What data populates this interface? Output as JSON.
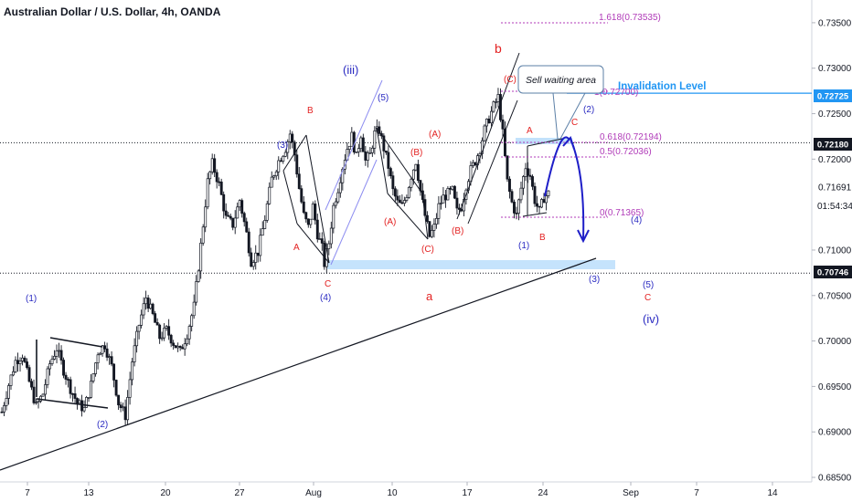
{
  "header": {
    "title": "Australian Dollar / U.S. Dollar, 4h, OANDA"
  },
  "chart_data": {
    "type": "candlestick",
    "title": "Australian Dollar / U.S. Dollar, 4h, OANDA",
    "xlabel": "",
    "ylabel": "",
    "ylim": [
      0.6845,
      0.7375
    ],
    "x_ticks": [
      "7",
      "13",
      "20",
      "27",
      "Aug",
      "10",
      "17",
      "24",
      "Sep",
      "7",
      "14"
    ],
    "y_ticks": [
      "0.73500",
      "0.73000",
      "0.72500",
      "0.72000",
      "0.71691",
      "0.71000",
      "0.70500",
      "0.70000",
      "0.69500",
      "0.69000",
      "0.68500"
    ],
    "price_badges": [
      {
        "value": "0.72725",
        "color": "#2196f3"
      },
      {
        "value": "0.72180",
        "color": "#131722"
      },
      {
        "value": "0.70746",
        "color": "#131722"
      }
    ],
    "countdown": "01:54:34",
    "price_path": [
      [
        0,
        0.6922
      ],
      [
        3,
        0.6952
      ],
      [
        6,
        0.6978
      ],
      [
        9,
        0.6985
      ],
      [
        12,
        0.6955
      ],
      [
        15,
        0.6928
      ],
      [
        18,
        0.6942
      ],
      [
        21,
        0.6975
      ],
      [
        24,
        0.6992
      ],
      [
        27,
        0.6968
      ],
      [
        30,
        0.6948
      ],
      [
        33,
        0.6932
      ],
      [
        36,
        0.6925
      ],
      [
        39,
        0.6952
      ],
      [
        42,
        0.6988
      ],
      [
        45,
        0.6996
      ],
      [
        48,
        0.6972
      ],
      [
        51,
        0.6932
      ],
      [
        54,
        0.6918
      ],
      [
        57,
        0.6978
      ],
      [
        60,
        0.7018
      ],
      [
        63,
        0.7048
      ],
      [
        66,
        0.7028
      ],
      [
        69,
        0.7004
      ],
      [
        72,
        0.7012
      ],
      [
        75,
        0.6998
      ],
      [
        78,
        0.6988
      ],
      [
        81,
        0.7008
      ],
      [
        84,
        0.7038
      ],
      [
        86,
        0.7082
      ],
      [
        88,
        0.7128
      ],
      [
        90,
        0.7175
      ],
      [
        92,
        0.7195
      ],
      [
        95,
        0.7172
      ],
      [
        98,
        0.7135
      ],
      [
        101,
        0.7128
      ],
      [
        104,
        0.7155
      ],
      [
        107,
        0.7118
      ],
      [
        109,
        0.7088
      ],
      [
        112,
        0.7098
      ],
      [
        115,
        0.7135
      ],
      [
        118,
        0.7178
      ],
      [
        121,
        0.7198
      ],
      [
        124,
        0.7212
      ],
      [
        126,
        0.7228
      ],
      [
        128,
        0.7205
      ],
      [
        130,
        0.7168
      ],
      [
        132,
        0.7138
      ],
      [
        134,
        0.7125
      ],
      [
        136,
        0.7148
      ],
      [
        138,
        0.7118
      ],
      [
        140,
        0.7102
      ],
      [
        141,
        0.7085
      ],
      [
        143,
        0.7108
      ],
      [
        145,
        0.7148
      ],
      [
        147,
        0.7168
      ],
      [
        149,
        0.7192
      ],
      [
        151,
        0.7212
      ],
      [
        153,
        0.7225
      ],
      [
        155,
        0.7202
      ],
      [
        157,
        0.7228
      ],
      [
        159,
        0.7198
      ],
      [
        161,
        0.7205
      ],
      [
        163,
        0.7228
      ],
      [
        165,
        0.7232
      ],
      [
        167,
        0.7212
      ],
      [
        169,
        0.7192
      ],
      [
        171,
        0.7165
      ],
      [
        173,
        0.7152
      ],
      [
        175,
        0.7148
      ],
      [
        177,
        0.7162
      ],
      [
        179,
        0.7182
      ],
      [
        181,
        0.7198
      ],
      [
        183,
        0.7165
      ],
      [
        185,
        0.7138
      ],
      [
        187,
        0.7115
      ],
      [
        189,
        0.7125
      ],
      [
        191,
        0.7148
      ],
      [
        193,
        0.7158
      ],
      [
        195,
        0.7162
      ],
      [
        197,
        0.7165
      ],
      [
        199,
        0.7142
      ],
      [
        201,
        0.7148
      ],
      [
        203,
        0.7172
      ],
      [
        205,
        0.7188
      ],
      [
        207,
        0.7198
      ],
      [
        209,
        0.7212
      ],
      [
        211,
        0.7232
      ],
      [
        213,
        0.7245
      ],
      [
        215,
        0.7258
      ],
      [
        217,
        0.7268
      ],
      [
        219,
        0.7228
      ],
      [
        221,
        0.7175
      ],
      [
        223,
        0.7152
      ],
      [
        225,
        0.7138
      ],
      [
        227,
        0.7168
      ],
      [
        229,
        0.7192
      ],
      [
        231,
        0.7182
      ],
      [
        233,
        0.7155
      ],
      [
        235,
        0.7142
      ],
      [
        237,
        0.7158
      ],
      [
        239,
        0.7162
      ]
    ],
    "price_lines": [
      {
        "value": 0.72725,
        "style": "solid",
        "color": "#2196f3"
      },
      {
        "value": 0.7218,
        "style": "dotted",
        "color": "#131722"
      },
      {
        "value": 0.70746,
        "style": "dotted",
        "color": "#131722"
      }
    ],
    "fib_levels": [
      {
        "label": "1.618(0.73535)",
        "value": 0.73535
      },
      {
        "label": "1(0.72700)",
        "value": 0.727
      },
      {
        "label": "0.618(0.72194)",
        "value": 0.72194
      },
      {
        "label": "0.5(0.72036)",
        "value": 0.72036
      },
      {
        "label": "0(0.71365)",
        "value": 0.71365
      }
    ],
    "annotations": {
      "invalidation": "Invalidation Level",
      "callout": "Sell waiting area"
    },
    "wave_labels": [
      {
        "text": "(1)",
        "color": "blue"
      },
      {
        "text": "(2)",
        "color": "blue"
      },
      {
        "text": "(3)",
        "color": "blue"
      },
      {
        "text": "A",
        "color": "red"
      },
      {
        "text": "B",
        "color": "red"
      },
      {
        "text": "C",
        "color": "red"
      },
      {
        "text": "(4)",
        "color": "blue"
      },
      {
        "text": "(iii)",
        "color": "blue"
      },
      {
        "text": "(5)",
        "color": "blue"
      },
      {
        "text": "(A)",
        "color": "red"
      },
      {
        "text": "(B)",
        "color": "red"
      },
      {
        "text": "(C)",
        "color": "red"
      },
      {
        "text": "(A)",
        "color": "red"
      },
      {
        "text": "(B)",
        "color": "red"
      },
      {
        "text": "(C)",
        "color": "red"
      },
      {
        "text": "a",
        "color": "red"
      },
      {
        "text": "b",
        "color": "red"
      },
      {
        "text": "A",
        "color": "red"
      },
      {
        "text": "B",
        "color": "red"
      },
      {
        "text": "C",
        "color": "red"
      },
      {
        "text": "(1)",
        "color": "blue"
      },
      {
        "text": "(2)",
        "color": "blue"
      },
      {
        "text": "(4)",
        "color": "blue"
      },
      {
        "text": "(3)",
        "color": "blue"
      },
      {
        "text": "(5)",
        "color": "blue"
      },
      {
        "text": "C",
        "color": "red"
      },
      {
        "text": "(iv)",
        "color": "blue"
      }
    ]
  }
}
